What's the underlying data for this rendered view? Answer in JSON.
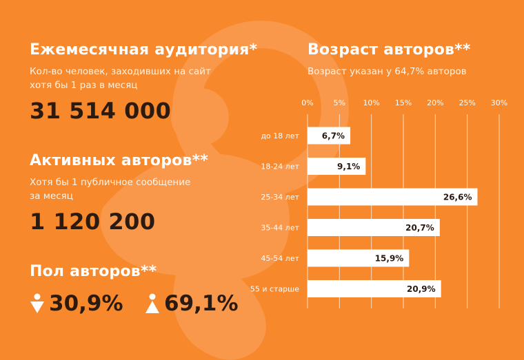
{
  "colors": {
    "background": "#f7882b",
    "dark_text": "#2a1a10",
    "bar_fill": "#ffffff"
  },
  "audience": {
    "title": "Ежемесячная аудитория*",
    "subtitle_line1": "Кол-во человек, заходивших на сайт",
    "subtitle_line2": "хотя бы 1 раз в месяц",
    "value": "31 514 000"
  },
  "active": {
    "title": "Активных авторов**",
    "subtitle_line1": "Хотя бы 1 публичное сообщение",
    "subtitle_line2": "за месяц",
    "value": "1 120 200"
  },
  "gender": {
    "title": "Пол авторов**",
    "female_icon": "female-icon",
    "male_icon": "male-icon",
    "female_value": "30,9%",
    "male_value": "69,1%"
  },
  "chart_data": {
    "type": "bar",
    "orientation": "horizontal",
    "title": "Возраст авторов**",
    "subtitle": "Возраст указан у 64,7% авторов",
    "categories": [
      "до 18 лет",
      "18-24 лет",
      "25-34 лет",
      "35-44 лет",
      "45-54 лет",
      "55 и старше"
    ],
    "values": [
      6.7,
      9.1,
      26.6,
      20.7,
      15.9,
      20.9
    ],
    "value_labels": [
      "6,7%",
      "9,1%",
      "26,6%",
      "20,7%",
      "15,9%",
      "20,9%"
    ],
    "xlim": [
      0,
      30
    ],
    "ticks": [
      0,
      5,
      10,
      15,
      20,
      25,
      30
    ],
    "tick_labels": [
      "0%",
      "5%",
      "10%",
      "15%",
      "20%",
      "25%",
      "30%"
    ],
    "xlabel": "",
    "ylabel": "",
    "grid": true
  }
}
